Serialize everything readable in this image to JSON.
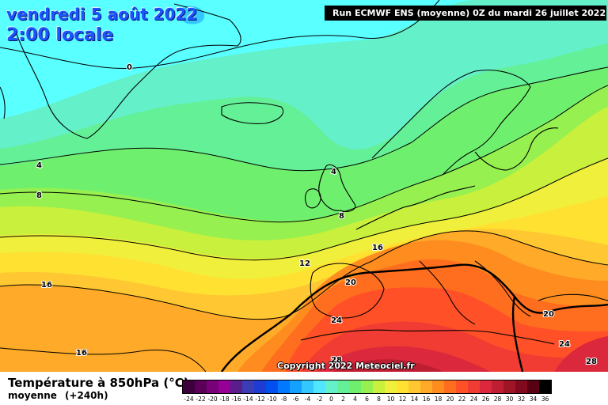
{
  "header": {
    "date_line": "vendredi 5 août 2022",
    "time_line": "2:00 locale",
    "run_info": "Run ECMWF ENS (moyenne) 0Z du mardi 26 juillet 2022"
  },
  "copyright": "Copyright 2022 Meteociel.fr",
  "legend": {
    "title": "Température à 850hPa (°C)",
    "sub_left": "moyenne",
    "sub_right": "(+240h)",
    "ticks": [
      "-24",
      "-22",
      "-20",
      "-18",
      "-16",
      "-14",
      "-12",
      "-10",
      "-8",
      "-6",
      "-4",
      "-2",
      "0",
      "2",
      "4",
      "6",
      "8",
      "10",
      "12",
      "14",
      "16",
      "18",
      "20",
      "22",
      "24",
      "26",
      "28",
      "30",
      "32",
      "34",
      "36"
    ],
    "colors": [
      "#3c003c",
      "#5a005a",
      "#780078",
      "#960096",
      "#5a1e8c",
      "#3c3cb4",
      "#1e3cd2",
      "#0050f0",
      "#0078ff",
      "#14a0ff",
      "#32c8ff",
      "#50e6ff",
      "#64f0c8",
      "#64f096",
      "#6ef06e",
      "#96f050",
      "#c8f03c",
      "#f0f03c",
      "#ffe132",
      "#ffc832",
      "#ffaa28",
      "#ff8c1e",
      "#ff6e1e",
      "#ff5028",
      "#f03c32",
      "#dc283c",
      "#be1e32",
      "#a01428",
      "#820a1e",
      "#5a0014",
      "#000000"
    ]
  },
  "isotherm_labels": [
    "0",
    "4",
    "8",
    "4",
    "8",
    "12",
    "16",
    "16",
    "20",
    "20",
    "24",
    "24",
    "28",
    "28",
    "16",
    "20"
  ],
  "colors": {
    "title_text": "#1a56ff"
  }
}
